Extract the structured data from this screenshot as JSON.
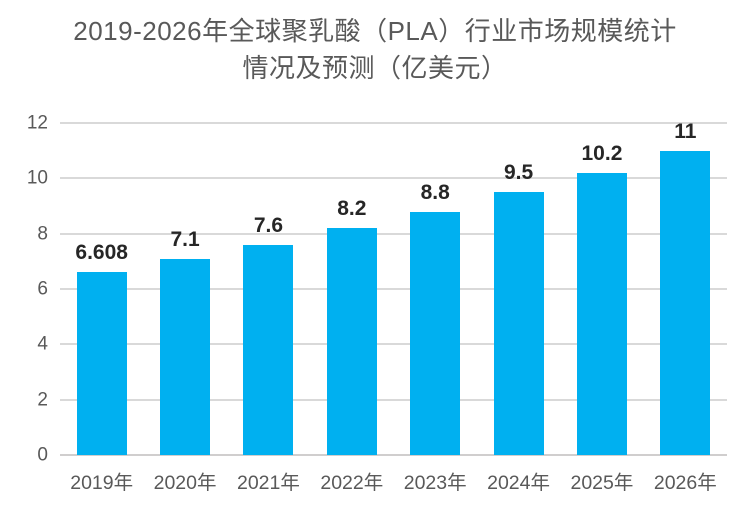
{
  "page": {
    "background": "#ffffff"
  },
  "chart_data": {
    "type": "bar",
    "title": "2019-2026年全球聚乳酸（PLA）行业市场规模统计情况及预测（亿美元）",
    "categories": [
      "2019年",
      "2020年",
      "2021年",
      "2022年",
      "2023年",
      "2024年",
      "2025年",
      "2026年"
    ],
    "values": [
      6.608,
      7.1,
      7.6,
      8.2,
      8.8,
      9.5,
      10.2,
      11
    ],
    "value_labels": [
      "6.608",
      "7.1",
      "7.6",
      "8.2",
      "8.8",
      "9.5",
      "10.2",
      "11"
    ],
    "xlabel": "",
    "ylabel": "",
    "ylim": [
      0,
      12
    ],
    "yticks": [
      0,
      2,
      4,
      6,
      8,
      10,
      12
    ],
    "grid": true,
    "legend": "none"
  },
  "colors": {
    "bar_fill": "#00B0F0",
    "gridline": "#D9D9D9",
    "axis_line": "#D0CECE",
    "title_text": "#595959",
    "tick_text": "#595959",
    "data_label_text": "#262626"
  }
}
